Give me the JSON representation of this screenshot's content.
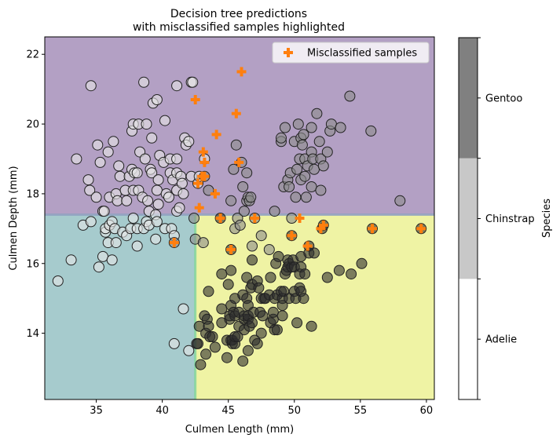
{
  "chart_data": {
    "type": "scatter",
    "title_line1": "Decision tree predictions",
    "title_line2": "with misclassified samples highlighted",
    "xlabel": "Culmen Length (mm)",
    "ylabel": "Culmen Depth (mm)",
    "xlim": [
      31.1,
      60.6
    ],
    "ylim": [
      12.1,
      22.5
    ],
    "x_ticks": [
      35,
      40,
      45,
      50,
      55,
      60
    ],
    "y_ticks": [
      14,
      16,
      18,
      20,
      22
    ],
    "grid": false,
    "legend": {
      "placement": "top-right",
      "label": "Misclassified samples"
    },
    "decision_regions": {
      "depth_threshold": 17.4,
      "length_threshold": 42.5,
      "regions": [
        {
          "class": "Gentoo",
          "rule": "depth > 17.4",
          "color": "#b3a0c4"
        },
        {
          "class": "Adelie",
          "rule": "depth <= 17.4 and length <= 42.5",
          "color": "#a6cbcd"
        },
        {
          "class": "Chinstrap",
          "rule": "depth <= 17.4 and length > 42.5",
          "color": "#eff3a4"
        }
      ]
    },
    "colorbar": {
      "label": "Species",
      "categories": [
        "Adelie",
        "Chinstrap",
        "Gentoo"
      ],
      "colors": [
        "#ffffff",
        "#c8c8c8",
        "#808080"
      ]
    },
    "point_colors": {
      "Adelie": "#e6e6e6",
      "Chinstrap": "#8c8c8c",
      "Gentoo": "#2f2f2f"
    },
    "marker_color": "#ff7f0e",
    "series": [
      {
        "class": "Adelie",
        "points": [
          [
            32.1,
            15.5
          ],
          [
            33.1,
            16.1
          ],
          [
            33.5,
            19.0
          ],
          [
            34.0,
            17.1
          ],
          [
            34.4,
            18.4
          ],
          [
            34.5,
            18.1
          ],
          [
            34.6,
            17.2
          ],
          [
            34.6,
            21.1
          ],
          [
            35.0,
            17.9
          ],
          [
            35.1,
            19.4
          ],
          [
            35.2,
            15.9
          ],
          [
            35.3,
            18.9
          ],
          [
            35.5,
            16.2
          ],
          [
            35.5,
            17.5
          ],
          [
            35.6,
            17.5
          ],
          [
            35.7,
            16.9
          ],
          [
            35.7,
            17.0
          ],
          [
            35.9,
            16.6
          ],
          [
            35.9,
            19.2
          ],
          [
            36.0,
            17.1
          ],
          [
            36.0,
            17.9
          ],
          [
            36.2,
            16.1
          ],
          [
            36.2,
            17.2
          ],
          [
            36.3,
            19.5
          ],
          [
            36.4,
            17.0
          ],
          [
            36.5,
            16.6
          ],
          [
            36.5,
            18.0
          ],
          [
            36.6,
            17.8
          ],
          [
            36.7,
            18.8
          ],
          [
            36.8,
            18.5
          ],
          [
            37.0,
            16.9
          ],
          [
            37.2,
            18.1
          ],
          [
            37.3,
            16.8
          ],
          [
            37.3,
            17.8
          ],
          [
            37.5,
            18.5
          ],
          [
            37.6,
            17.0
          ],
          [
            37.7,
            18.7
          ],
          [
            37.7,
            19.8
          ],
          [
            37.8,
            17.3
          ],
          [
            37.8,
            18.1
          ],
          [
            37.8,
            20.0
          ],
          [
            37.9,
            18.6
          ],
          [
            38.1,
            16.5
          ],
          [
            38.1,
            17.0
          ],
          [
            38.1,
            18.6
          ],
          [
            38.2,
            18.1
          ],
          [
            38.2,
            20.0
          ],
          [
            38.3,
            19.2
          ],
          [
            38.5,
            17.9
          ],
          [
            38.6,
            17.0
          ],
          [
            38.6,
            21.2
          ],
          [
            38.7,
            19.0
          ],
          [
            38.8,
            17.2
          ],
          [
            38.8,
            20.0
          ],
          [
            38.9,
            17.8
          ],
          [
            39.0,
            17.1
          ],
          [
            39.0,
            17.5
          ],
          [
            39.1,
            18.7
          ],
          [
            39.2,
            18.6
          ],
          [
            39.2,
            19.6
          ],
          [
            39.3,
            20.6
          ],
          [
            39.5,
            16.7
          ],
          [
            39.5,
            17.4
          ],
          [
            39.6,
            17.2
          ],
          [
            39.6,
            18.1
          ],
          [
            39.6,
            20.7
          ],
          [
            39.7,
            17.7
          ],
          [
            39.7,
            18.4
          ],
          [
            39.8,
            19.1
          ],
          [
            40.1,
            18.9
          ],
          [
            40.2,
            17.0
          ],
          [
            40.2,
            20.1
          ],
          [
            40.3,
            18.0
          ],
          [
            40.5,
            17.9
          ],
          [
            40.6,
            18.6
          ],
          [
            40.6,
            19.0
          ],
          [
            40.7,
            17.0
          ],
          [
            40.8,
            18.4
          ],
          [
            40.9,
            16.8
          ],
          [
            41.1,
            17.5
          ],
          [
            41.1,
            18.1
          ],
          [
            41.1,
            18.6
          ],
          [
            41.1,
            19.0
          ],
          [
            41.1,
            21.1
          ],
          [
            41.3,
            17.6
          ],
          [
            41.4,
            18.5
          ],
          [
            41.5,
            18.3
          ],
          [
            41.6,
            18.0
          ],
          [
            41.7,
            19.6
          ],
          [
            41.8,
            19.4
          ],
          [
            42.0,
            19.5
          ],
          [
            42.2,
            18.5
          ],
          [
            42.2,
            21.2
          ],
          [
            42.3,
            21.2
          ],
          [
            42.7,
            18.3
          ],
          [
            42.8,
            18.5
          ],
          [
            43.2,
            19.0
          ]
        ]
      },
      {
        "class": "Adelie",
        "points": [
          [
            40.9,
            13.7
          ],
          [
            41.6,
            14.7
          ],
          [
            42.0,
            13.5
          ]
        ]
      },
      {
        "class": "Chinstrap",
        "points": [
          [
            40.9,
            16.6
          ],
          [
            42.4,
            17.3
          ],
          [
            42.5,
            16.7
          ],
          [
            43.1,
            16.6
          ],
          [
            43.2,
            18.5
          ],
          [
            43.5,
            18.1
          ],
          [
            45.2,
            17.8
          ],
          [
            45.4,
            18.7
          ],
          [
            45.5,
            17.0
          ],
          [
            45.6,
            19.4
          ],
          [
            45.7,
            17.3
          ],
          [
            45.9,
            17.1
          ],
          [
            46.0,
            18.9
          ],
          [
            46.1,
            18.2
          ],
          [
            46.2,
            17.5
          ],
          [
            46.4,
            18.6
          ],
          [
            46.4,
            17.8
          ],
          [
            46.5,
            17.9
          ],
          [
            46.6,
            17.8
          ],
          [
            46.7,
            17.9
          ],
          [
            46.8,
            16.5
          ],
          [
            47.0,
            17.3
          ],
          [
            47.5,
            16.8
          ],
          [
            48.1,
            16.4
          ],
          [
            48.5,
            17.5
          ],
          [
            49.0,
            19.5
          ],
          [
            49.0,
            19.6
          ],
          [
            49.2,
            18.2
          ],
          [
            49.3,
            19.9
          ],
          [
            49.5,
            18.4
          ],
          [
            49.6,
            18.2
          ],
          [
            49.7,
            18.6
          ],
          [
            49.8,
            17.3
          ],
          [
            50.0,
            19.5
          ],
          [
            50.1,
            17.9
          ],
          [
            50.2,
            18.7
          ],
          [
            50.3,
            20.0
          ],
          [
            50.4,
            19.0
          ],
          [
            50.5,
            18.4
          ],
          [
            50.5,
            19.6
          ],
          [
            50.6,
            19.4
          ],
          [
            50.7,
            19.7
          ],
          [
            50.8,
            18.5
          ],
          [
            50.8,
            19.0
          ],
          [
            50.9,
            17.9
          ],
          [
            51.0,
            18.8
          ],
          [
            51.3,
            18.2
          ],
          [
            51.3,
            19.2
          ],
          [
            51.3,
            19.9
          ],
          [
            51.4,
            19.0
          ],
          [
            51.5,
            18.7
          ],
          [
            51.7,
            20.3
          ],
          [
            51.9,
            19.5
          ],
          [
            52.0,
            18.1
          ],
          [
            52.0,
            19.0
          ],
          [
            52.2,
            18.8
          ],
          [
            52.5,
            19.2
          ],
          [
            52.7,
            19.8
          ],
          [
            52.8,
            20.0
          ],
          [
            53.5,
            19.9
          ],
          [
            54.2,
            20.8
          ],
          [
            55.8,
            19.8
          ],
          [
            58.0,
            17.8
          ]
        ]
      },
      {
        "class": "Gentoo",
        "points": [
          [
            42.6,
            13.7
          ],
          [
            42.7,
            13.7
          ],
          [
            42.8,
            14.2
          ],
          [
            42.9,
            13.1
          ],
          [
            43.2,
            14.5
          ],
          [
            43.3,
            13.4
          ],
          [
            43.3,
            14.0
          ],
          [
            43.4,
            14.4
          ],
          [
            43.5,
            14.2
          ],
          [
            43.5,
            15.2
          ],
          [
            43.6,
            13.9
          ],
          [
            43.8,
            13.9
          ],
          [
            44.0,
            13.6
          ],
          [
            44.4,
            17.3
          ],
          [
            44.5,
            14.3
          ],
          [
            44.5,
            14.7
          ],
          [
            44.5,
            15.7
          ],
          [
            44.9,
            13.3
          ],
          [
            44.9,
            13.8
          ],
          [
            45.0,
            15.4
          ],
          [
            45.1,
            14.4
          ],
          [
            45.1,
            14.5
          ],
          [
            45.2,
            13.8
          ],
          [
            45.2,
            14.8
          ],
          [
            45.2,
            15.8
          ],
          [
            45.2,
            16.4
          ],
          [
            45.3,
            13.7
          ],
          [
            45.3,
            13.8
          ],
          [
            45.4,
            14.6
          ],
          [
            45.5,
            13.7
          ],
          [
            45.5,
            13.9
          ],
          [
            45.5,
            14.5
          ],
          [
            45.5,
            15.0
          ],
          [
            45.7,
            13.9
          ],
          [
            45.8,
            14.2
          ],
          [
            45.8,
            14.6
          ],
          [
            46.1,
            13.2
          ],
          [
            46.1,
            15.1
          ],
          [
            46.2,
            14.1
          ],
          [
            46.2,
            14.4
          ],
          [
            46.2,
            14.5
          ],
          [
            46.4,
            15.0
          ],
          [
            46.4,
            15.6
          ],
          [
            46.5,
            13.5
          ],
          [
            46.5,
            14.4
          ],
          [
            46.5,
            14.5
          ],
          [
            46.5,
            14.8
          ],
          [
            46.6,
            14.2
          ],
          [
            46.7,
            15.3
          ],
          [
            46.8,
            14.3
          ],
          [
            46.8,
            15.4
          ],
          [
            46.8,
            16.1
          ],
          [
            46.9,
            14.6
          ],
          [
            47.0,
            13.8
          ],
          [
            47.2,
            13.7
          ],
          [
            47.2,
            15.5
          ],
          [
            47.3,
            15.3
          ],
          [
            47.4,
            14.6
          ],
          [
            47.5,
            14.0
          ],
          [
            47.5,
            15.0
          ],
          [
            47.6,
            14.5
          ],
          [
            47.7,
            15.0
          ],
          [
            47.8,
            15.0
          ],
          [
            48.1,
            15.1
          ],
          [
            48.2,
            14.3
          ],
          [
            48.2,
            15.6
          ],
          [
            48.4,
            14.4
          ],
          [
            48.4,
            14.6
          ],
          [
            48.5,
            14.1
          ],
          [
            48.5,
            15.0
          ],
          [
            48.6,
            16.0
          ],
          [
            48.7,
            14.1
          ],
          [
            48.7,
            15.1
          ],
          [
            48.8,
            16.2
          ],
          [
            49.0,
            15.2
          ],
          [
            49.1,
            14.5
          ],
          [
            49.1,
            14.8
          ],
          [
            49.1,
            15.0
          ],
          [
            49.2,
            15.2
          ],
          [
            49.3,
            15.7
          ],
          [
            49.4,
            15.8
          ],
          [
            49.5,
            15.9
          ],
          [
            49.5,
            16.1
          ],
          [
            49.6,
            15.0
          ],
          [
            49.6,
            16.0
          ],
          [
            49.8,
            15.9
          ],
          [
            49.8,
            16.8
          ],
          [
            49.9,
            16.1
          ],
          [
            50.0,
            15.2
          ],
          [
            50.0,
            15.9
          ],
          [
            50.1,
            15.0
          ],
          [
            50.2,
            14.3
          ],
          [
            50.4,
            15.3
          ],
          [
            50.4,
            15.7
          ],
          [
            50.5,
            15.2
          ],
          [
            50.5,
            15.9
          ],
          [
            50.5,
            16.2
          ],
          [
            50.7,
            15.0
          ],
          [
            50.8,
            15.7
          ],
          [
            51.1,
            16.3
          ],
          [
            51.1,
            16.5
          ],
          [
            51.3,
            14.2
          ],
          [
            51.5,
            16.3
          ],
          [
            52.1,
            17.0
          ],
          [
            52.2,
            17.1
          ],
          [
            52.5,
            15.6
          ],
          [
            53.4,
            15.8
          ],
          [
            54.3,
            15.7
          ],
          [
            55.1,
            16.0
          ],
          [
            55.9,
            17.0
          ],
          [
            59.6,
            17.0
          ]
        ]
      }
    ],
    "misclassified": [
      [
        40.9,
        16.6
      ],
      [
        42.5,
        20.7
      ],
      [
        42.7,
        18.3
      ],
      [
        42.8,
        17.6
      ],
      [
        43.0,
        18.5
      ],
      [
        43.1,
        19.2
      ],
      [
        43.2,
        18.5
      ],
      [
        43.2,
        18.9
      ],
      [
        44.0,
        18.0
      ],
      [
        44.1,
        19.7
      ],
      [
        44.4,
        17.3
      ],
      [
        45.2,
        16.4
      ],
      [
        45.6,
        20.3
      ],
      [
        45.8,
        18.9
      ],
      [
        46.0,
        21.5
      ],
      [
        47.0,
        17.3
      ],
      [
        49.8,
        16.8
      ],
      [
        50.4,
        17.3
      ],
      [
        51.0,
        16.5
      ],
      [
        52.0,
        17.0
      ],
      [
        52.2,
        17.1
      ],
      [
        55.9,
        17.0
      ],
      [
        59.6,
        17.0
      ]
    ]
  }
}
